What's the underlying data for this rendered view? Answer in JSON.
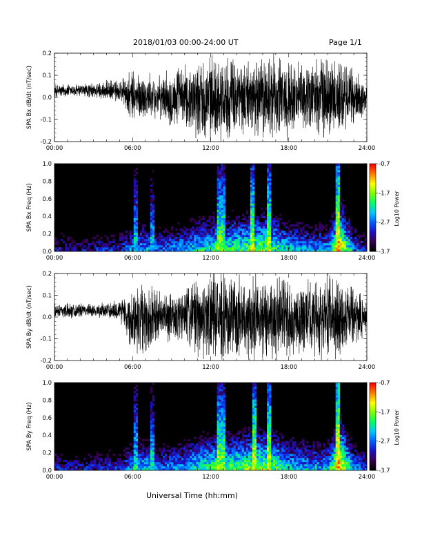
{
  "header": {
    "date_range": "2018/01/03  00:00-24:00 UT",
    "page": "Page 1/1"
  },
  "x_axis": {
    "title": "Universal Time (hh:mm)",
    "ticks": [
      "00:00",
      "06:00",
      "12:00",
      "18:00",
      "24:00"
    ],
    "range_hours": [
      0,
      24
    ]
  },
  "colors": {
    "colormap": [
      "#000000",
      "#3a0050",
      "#1a10c8",
      "#0060ff",
      "#00c8ff",
      "#00ff60",
      "#80ff00",
      "#ffff00",
      "#ff8000",
      "#ff0000"
    ]
  },
  "chart_data": [
    {
      "type": "line",
      "ylabel": "SPA Bx dB/dt (nT/sec)",
      "ylim": [
        -0.2,
        0.2
      ],
      "yticks": [
        "0.2",
        "0.1",
        "0.0",
        "-0.1",
        "-0.2"
      ],
      "xlim": [
        0,
        24
      ],
      "envelope": {
        "x_hours": [
          0,
          1,
          2,
          3,
          4,
          5,
          6,
          7,
          8,
          9,
          10,
          11,
          12,
          13,
          14,
          15,
          16,
          17,
          18,
          19,
          20,
          21,
          22,
          23,
          24
        ],
        "amplitude": [
          0.035,
          0.035,
          0.035,
          0.04,
          0.05,
          0.06,
          0.14,
          0.12,
          0.1,
          0.15,
          0.16,
          0.2,
          0.21,
          0.21,
          0.2,
          0.18,
          0.22,
          0.22,
          0.2,
          0.16,
          0.2,
          0.22,
          0.2,
          0.15,
          0.08
        ]
      }
    },
    {
      "type": "heatmap",
      "ylabel": "SPA Bx Freq (Hz)",
      "ylim": [
        0,
        1.0
      ],
      "yticks": [
        "1.0",
        "0.8",
        "0.6",
        "0.4",
        "0.2",
        "0.0"
      ],
      "xlim": [
        0,
        24
      ],
      "colorbar": {
        "title": "Log10 Power",
        "ticks": [
          "-0.7",
          "-1.7",
          "-2.7",
          "-3.7"
        ],
        "range": [
          -3.7,
          -0.7
        ]
      },
      "activity": {
        "x_hours": [
          0,
          1,
          2,
          3,
          4,
          5,
          6,
          7,
          8,
          9,
          10,
          11,
          12,
          13,
          14,
          15,
          16,
          17,
          18,
          19,
          20,
          21,
          22,
          23,
          24
        ],
        "log_power_low_freq": [
          -3.0,
          -3.1,
          -3.2,
          -3.1,
          -3.0,
          -3.0,
          -2.5,
          -2.4,
          -2.7,
          -2.6,
          -2.4,
          -2.2,
          -2.0,
          -2.0,
          -1.9,
          -1.8,
          -1.7,
          -1.9,
          -2.3,
          -2.4,
          -2.5,
          -2.4,
          -1.2,
          -2.6,
          -3.0
        ]
      },
      "bursts_hours": [
        6.3,
        7.5,
        12.6,
        13.0,
        15.2,
        16.5,
        21.8
      ]
    },
    {
      "type": "line",
      "ylabel": "SPA By dB/dt (nT/sec)",
      "ylim": [
        -0.2,
        0.2
      ],
      "yticks": [
        "0.2",
        "0.1",
        "0.0",
        "-0.1",
        "-0.2"
      ],
      "xlim": [
        0,
        24
      ],
      "envelope": {
        "x_hours": [
          0,
          1,
          2,
          3,
          4,
          5,
          6,
          7,
          8,
          9,
          10,
          11,
          12,
          13,
          14,
          15,
          16,
          17,
          18,
          19,
          20,
          21,
          22,
          23,
          24
        ],
        "amplitude": [
          0.035,
          0.04,
          0.035,
          0.035,
          0.04,
          0.06,
          0.16,
          0.2,
          0.14,
          0.12,
          0.16,
          0.2,
          0.22,
          0.22,
          0.22,
          0.21,
          0.22,
          0.22,
          0.22,
          0.18,
          0.2,
          0.22,
          0.2,
          0.15,
          0.09
        ]
      }
    },
    {
      "type": "heatmap",
      "ylabel": "SPA By Freq (Hz)",
      "ylim": [
        0,
        1.0
      ],
      "yticks": [
        "1.0",
        "0.8",
        "0.6",
        "0.4",
        "0.2",
        "0.0"
      ],
      "xlim": [
        0,
        24
      ],
      "colorbar": {
        "title": "Log10 Power",
        "ticks": [
          "-0.7",
          "-1.7",
          "-2.7",
          "-3.7"
        ],
        "range": [
          -3.7,
          -0.7
        ]
      },
      "activity": {
        "x_hours": [
          0,
          1,
          2,
          3,
          4,
          5,
          6,
          7,
          8,
          9,
          10,
          11,
          12,
          13,
          14,
          15,
          16,
          17,
          18,
          19,
          20,
          21,
          22,
          23,
          24
        ],
        "log_power_low_freq": [
          -2.9,
          -3.0,
          -3.1,
          -3.0,
          -2.9,
          -2.9,
          -2.4,
          -2.2,
          -2.6,
          -2.5,
          -2.3,
          -2.1,
          -1.9,
          -1.9,
          -1.8,
          -1.7,
          -1.6,
          -1.8,
          -2.2,
          -2.3,
          -2.4,
          -2.3,
          -1.1,
          -2.5,
          -2.9
        ]
      },
      "bursts_hours": [
        6.3,
        7.5,
        12.6,
        13.0,
        15.4,
        16.5,
        21.8
      ]
    }
  ]
}
